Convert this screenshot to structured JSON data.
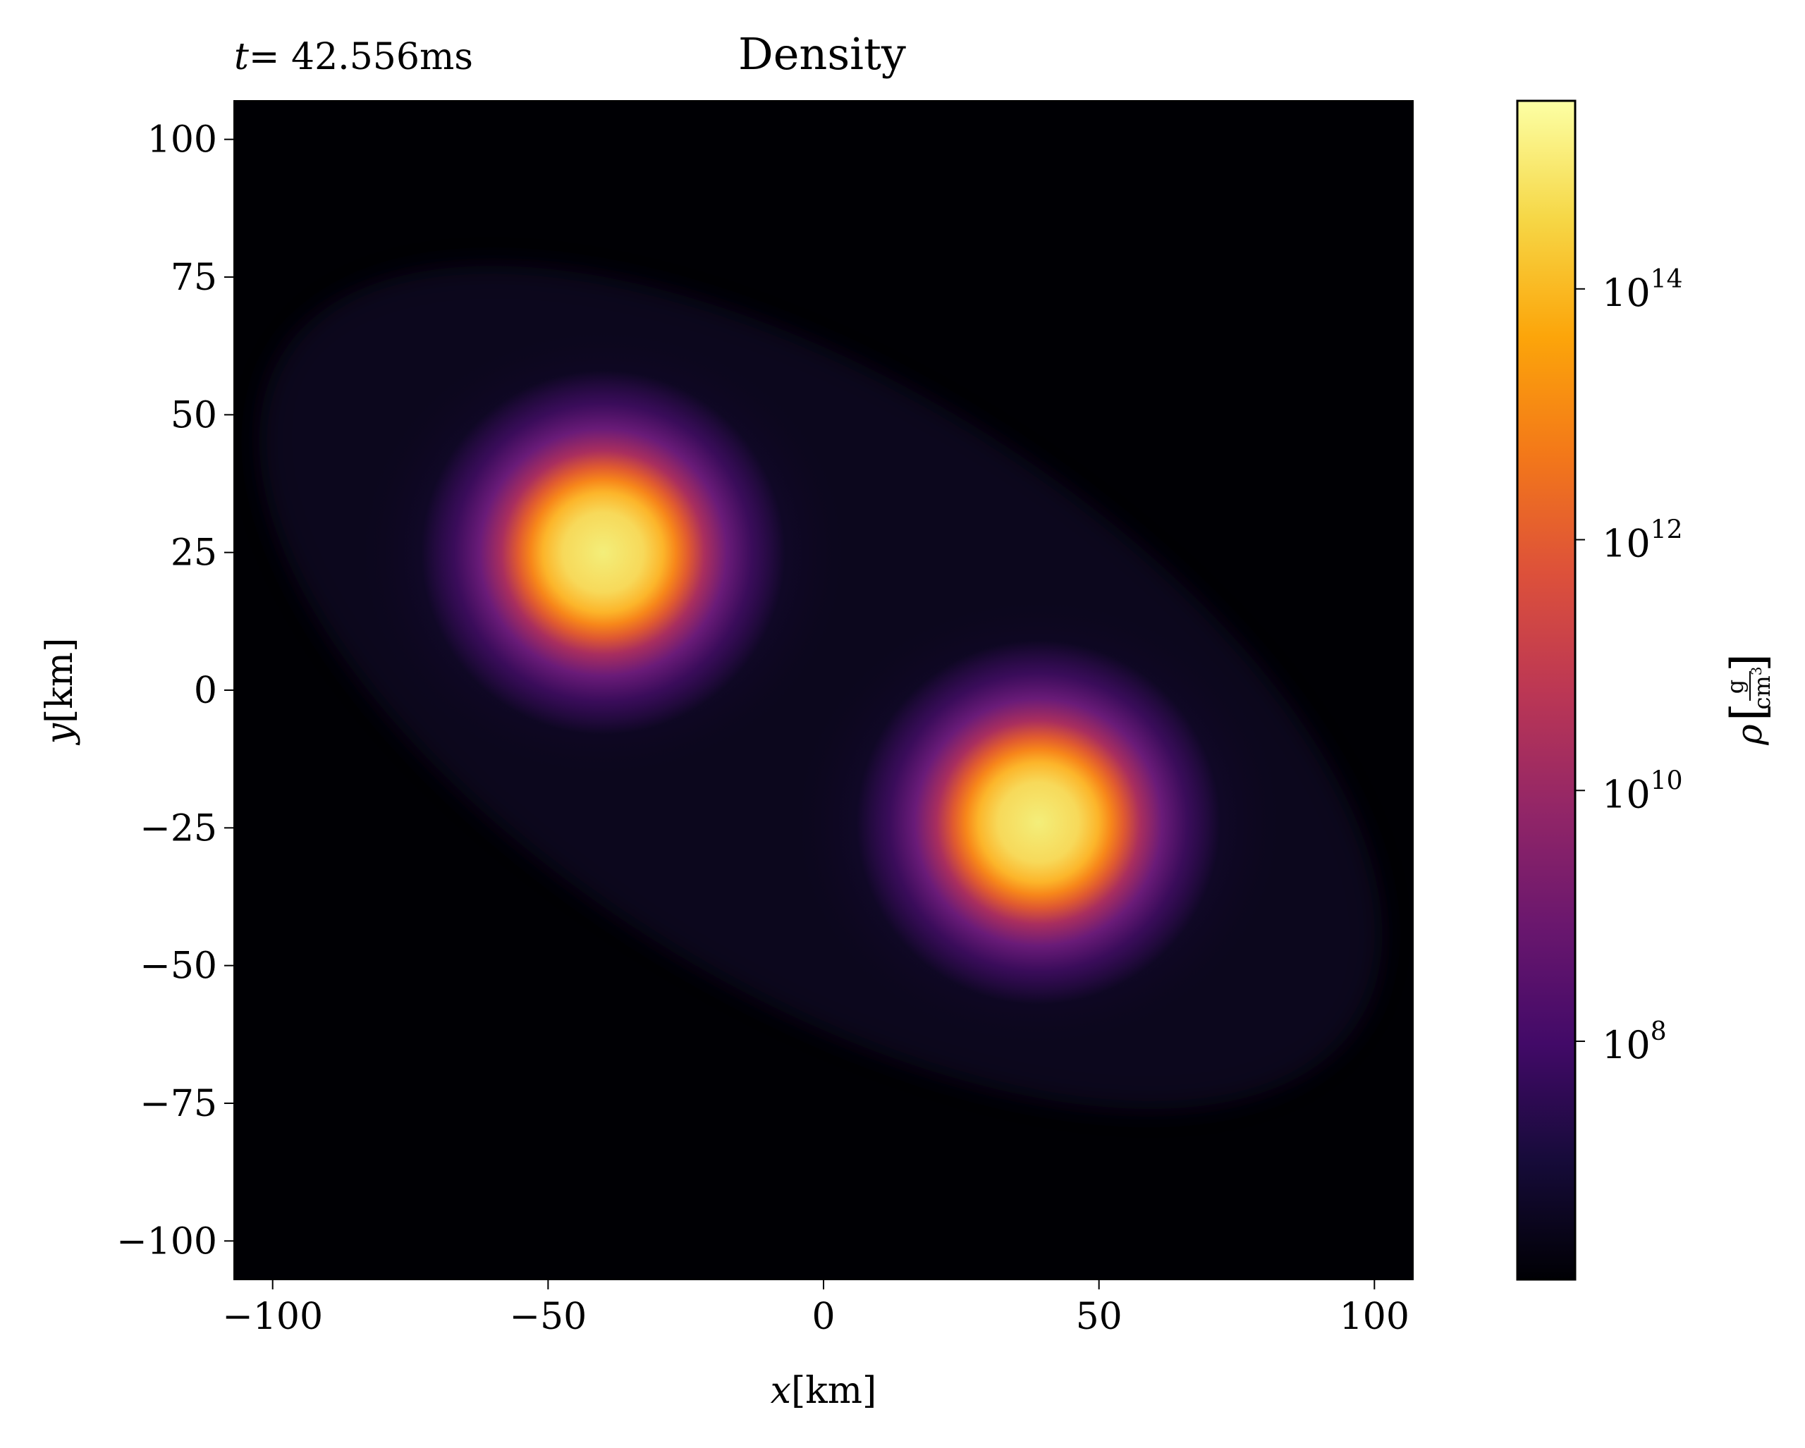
{
  "chart_data": {
    "type": "heatmap",
    "title": "Density",
    "time_label": {
      "prefix": "t",
      "text": "= 42.556ms"
    },
    "xlabel": {
      "var": "x",
      "unit": "[km]"
    },
    "ylabel": {
      "var": "y",
      "unit": "[km]"
    },
    "xlim": [
      -107,
      107
    ],
    "ylim": [
      -107,
      107
    ],
    "xticks": [
      {
        "value": -100,
        "label": "−100"
      },
      {
        "value": -50,
        "label": "−50"
      },
      {
        "value": 0,
        "label": "0"
      },
      {
        "value": 50,
        "label": "50"
      },
      {
        "value": 100,
        "label": "100"
      }
    ],
    "yticks": [
      {
        "value": 100,
        "label": "100"
      },
      {
        "value": 75,
        "label": "75"
      },
      {
        "value": 50,
        "label": "50"
      },
      {
        "value": 25,
        "label": "25"
      },
      {
        "value": 0,
        "label": "0"
      },
      {
        "value": -25,
        "label": "−25"
      },
      {
        "value": -50,
        "label": "−50"
      },
      {
        "value": -75,
        "label": "−75"
      },
      {
        "value": -100,
        "label": "−100"
      }
    ],
    "colorbar": {
      "label_var": "ρ",
      "unit_numerator": "g",
      "unit_denominator": "cm",
      "unit_denominator_exp": "3",
      "scale": "log",
      "range_log10": [
        6.1,
        15.5
      ],
      "colormap": "inferno",
      "ticks": [
        {
          "exp": 8,
          "base": "10",
          "sup": "8"
        },
        {
          "exp": 10,
          "base": "10",
          "sup": "10"
        },
        {
          "exp": 12,
          "base": "10",
          "sup": "12"
        },
        {
          "exp": 14,
          "base": "10",
          "sup": "14"
        }
      ]
    },
    "cores": [
      {
        "x": -40,
        "y": 25
      },
      {
        "x": 39,
        "y": -24
      }
    ]
  }
}
